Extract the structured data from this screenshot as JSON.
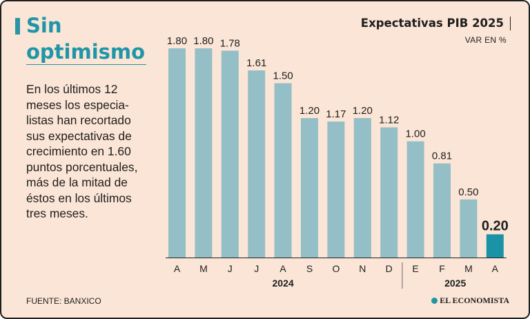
{
  "headline": {
    "line1": "Sin",
    "line2": "optimismo"
  },
  "description": "En los últimos 12\nmeses los especia-\nlistas han recortado\nsus expectativas de\ncrecimiento en 1.60\npuntos porcentuales,\nmás de la mitad de\néstos en los últimos\ntres meses.",
  "source": "FUENTE: BANXICO",
  "logo": "EL ECONOMISTA",
  "colors": {
    "bar": "#94bfc6",
    "highlight": "#1a93a7",
    "accent": "#1f96a8",
    "background": "#fbe5d6"
  },
  "chart_data": {
    "type": "bar",
    "title": "Expectativas PIB 2025",
    "unit_label": "VAR EN %",
    "categories": [
      "A",
      "M",
      "J",
      "J",
      "A",
      "S",
      "O",
      "N",
      "D",
      "E",
      "F",
      "M",
      "A"
    ],
    "values": [
      1.8,
      1.8,
      1.78,
      1.61,
      1.5,
      1.2,
      1.17,
      1.2,
      1.12,
      1.0,
      0.81,
      0.5,
      0.2
    ],
    "value_labels": [
      "1.80",
      "1.80",
      "1.78",
      "1.61",
      "1.50",
      "1.20",
      "1.17",
      "1.20",
      "1.12",
      "1.00",
      "0.81",
      "0.50",
      "0.20"
    ],
    "highlight_index": 12,
    "year_groups": [
      {
        "label": "2024",
        "from": 0,
        "to": 8
      },
      {
        "label": "2025",
        "from": 9,
        "to": 12
      }
    ],
    "ylim": [
      0,
      1.8
    ],
    "grid": false,
    "legend": "none"
  }
}
